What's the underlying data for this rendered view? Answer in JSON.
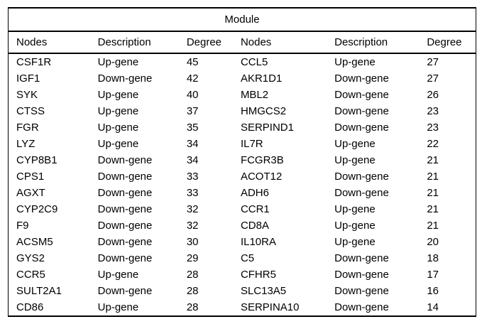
{
  "table": {
    "title": "Module",
    "columns": [
      "Nodes",
      "Description",
      "Degree",
      "Nodes",
      "Description",
      "Degree"
    ],
    "rows": [
      [
        "CSF1R",
        "Up-gene",
        "45",
        "CCL5",
        "Up-gene",
        "27"
      ],
      [
        "IGF1",
        "Down-gene",
        "42",
        "AKR1D1",
        "Down-gene",
        "27"
      ],
      [
        "SYK",
        "Up-gene",
        "40",
        "MBL2",
        "Down-gene",
        "26"
      ],
      [
        "CTSS",
        "Up-gene",
        "37",
        "HMGCS2",
        "Down-gene",
        "23"
      ],
      [
        "FGR",
        "Up-gene",
        "35",
        "SERPIND1",
        "Down-gene",
        "23"
      ],
      [
        "LYZ",
        "Up-gene",
        "34",
        "IL7R",
        "Up-gene",
        "22"
      ],
      [
        "CYP8B1",
        "Down-gene",
        "34",
        "FCGR3B",
        "Up-gene",
        "21"
      ],
      [
        "CPS1",
        "Down-gene",
        "33",
        "ACOT12",
        "Down-gene",
        "21"
      ],
      [
        "AGXT",
        "Down-gene",
        "33",
        "ADH6",
        "Down-gene",
        "21"
      ],
      [
        "CYP2C9",
        "Down-gene",
        "32",
        "CCR1",
        "Up-gene",
        "21"
      ],
      [
        "F9",
        "Down-gene",
        "32",
        "CD8A",
        "Up-gene",
        "21"
      ],
      [
        "ACSM5",
        "Down-gene",
        "30",
        "IL10RA",
        "Up-gene",
        "20"
      ],
      [
        "GYS2",
        "Down-gene",
        "29",
        "C5",
        "Down-gene",
        "18"
      ],
      [
        "CCR5",
        "Up-gene",
        "28",
        "CFHR5",
        "Down-gene",
        "17"
      ],
      [
        "SULT2A1",
        "Down-gene",
        "28",
        "SLC13A5",
        "Down-gene",
        "16"
      ],
      [
        "CD86",
        "Up-gene",
        "28",
        "SERPINA10",
        "Down-gene",
        "14"
      ]
    ]
  }
}
